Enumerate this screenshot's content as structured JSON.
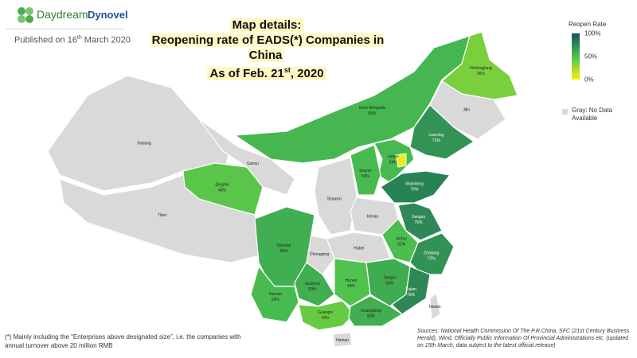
{
  "header": {
    "brand": "Daydream",
    "partner": "Dynovel",
    "published": {
      "text": "Published on 16",
      "sup": "th",
      "tail": " March 2020"
    }
  },
  "title": {
    "line1": "Map details:",
    "line2": "Reopening rate of EADS(*) Companies in China",
    "line3": {
      "text": "As of Feb. 21",
      "sup": "st",
      "tail": ", 2020"
    }
  },
  "legend": {
    "title": "Reopen Rate",
    "scale": [
      {
        "value": 100,
        "label": "100%"
      },
      {
        "value": 50,
        "label": "50%"
      },
      {
        "value": 0,
        "label": "0%"
      }
    ],
    "no_data": "Gray: No Data Available"
  },
  "footnote": "(*) Mainly including the “Enterprises above designated size”, i.e. the companies with annual turnover above 20 million RMB",
  "sources": "Sources: National Health Commission Of The P.R.China, SFC (21st Century Business Herald), Wind, Officially Public Information Of Provincial Administrations etc. (updated on 15th March, data subject to the latest official release)",
  "provinces": [
    {
      "name": "Xinjiang",
      "value": null,
      "label": null
    },
    {
      "name": "Tibet",
      "value": null,
      "label": null
    },
    {
      "name": "Qinghai",
      "value": 46,
      "label": "46%"
    },
    {
      "name": "Gansu",
      "value": null,
      "label": null
    },
    {
      "name": "Inner Mongolia",
      "value": 55,
      "label": "55%"
    },
    {
      "name": "Heilongjiang",
      "value": 36,
      "label": "36%"
    },
    {
      "name": "Jilin",
      "value": null,
      "label": null
    },
    {
      "name": "Liaoning",
      "value": 71,
      "label": "71%"
    },
    {
      "name": "Hebei",
      "value": 54,
      "label": "54%"
    },
    {
      "name": "Shanxi",
      "value": 53,
      "label": "53%"
    },
    {
      "name": "Shaanxi",
      "value": null,
      "label": null
    },
    {
      "name": "Shandong",
      "value": 79,
      "label": "79%"
    },
    {
      "name": "Henan",
      "value": null,
      "label": null
    },
    {
      "name": "Jiangsu",
      "value": 76,
      "label": "76%"
    },
    {
      "name": "Anhui",
      "value": 52,
      "label": "52%"
    },
    {
      "name": "Zhejiang",
      "value": 72,
      "label": "72%"
    },
    {
      "name": "Hubei",
      "value": null,
      "label": null
    },
    {
      "name": "Chongqing",
      "value": null,
      "label": null
    },
    {
      "name": "Sichuan",
      "value": 59,
      "label": "59%"
    },
    {
      "name": "Hunan",
      "value": 49,
      "label": "49%"
    },
    {
      "name": "Jiangxi",
      "value": 60,
      "label": "60%"
    },
    {
      "name": "Fujian",
      "value": 76,
      "label": "76%"
    },
    {
      "name": "Guizhou",
      "value": 59,
      "label": "59%"
    },
    {
      "name": "Yunnan",
      "value": 53,
      "label": "53%"
    },
    {
      "name": "Guangxi",
      "value": 42,
      "label": "42%"
    },
    {
      "name": "Guangdong",
      "value": 59,
      "label": "59%"
    },
    {
      "name": "Hainan",
      "value": null,
      "label": null
    },
    {
      "name": "Taiwan",
      "value": null,
      "label": null
    }
  ]
}
